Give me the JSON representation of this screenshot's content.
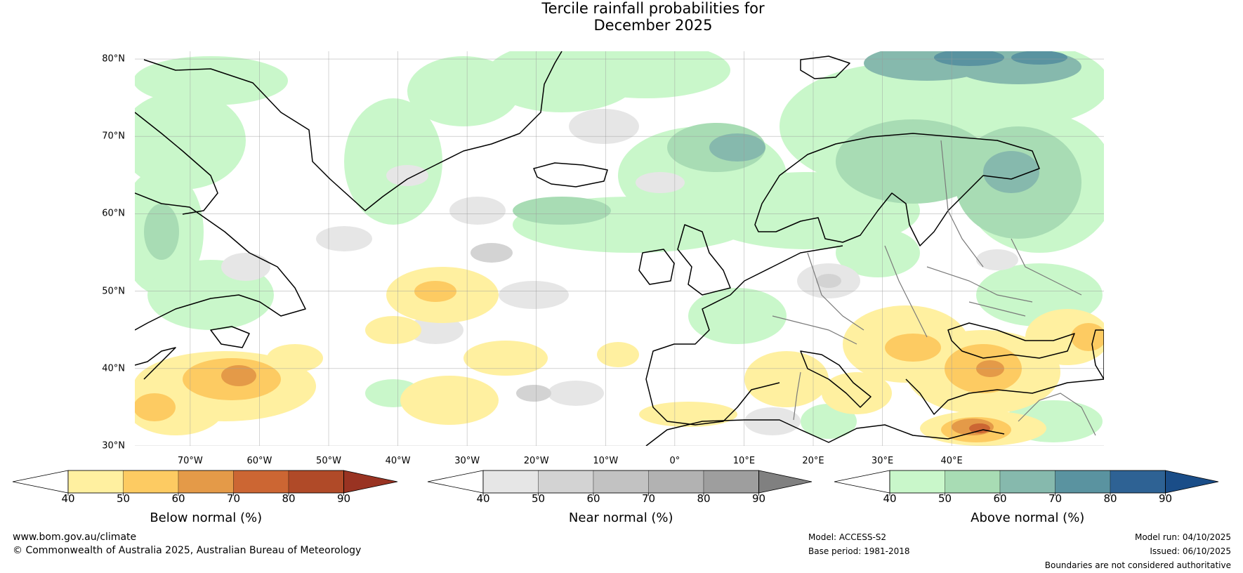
{
  "title": {
    "line1": "Tercile rainfall probabilities for",
    "line2": "December 2025"
  },
  "map": {
    "lat_labels": [
      "80°N",
      "70°N",
      "60°N",
      "50°N",
      "40°N",
      "30°N"
    ],
    "lon_labels": [
      "70°W",
      "60°W",
      "50°W",
      "40°W",
      "30°W",
      "20°W",
      "10°W",
      "0°",
      "10°E",
      "20°E",
      "30°E",
      "40°E"
    ],
    "colors": {
      "below": [
        "#fff0a0",
        "#fdcb62",
        "#e49a48",
        "#cc6633",
        "#b04a28",
        "#993322"
      ],
      "near": [
        "#e6e6e6",
        "#d3d3d3",
        "#c2c2c2",
        "#b2b2b2",
        "#9e9e9e",
        "#808080"
      ],
      "above": [
        "#c9f7ca",
        "#a8dcb4",
        "#86b9ad",
        "#5a93a0",
        "#2e6294",
        "#1a4d88"
      ]
    }
  },
  "colorbars": [
    {
      "name": "below",
      "label": "Below normal (%)",
      "ticks": [
        "40",
        "50",
        "60",
        "70",
        "80",
        "90"
      ]
    },
    {
      "name": "near",
      "label": "Near normal (%)",
      "ticks": [
        "40",
        "50",
        "60",
        "70",
        "80",
        "90"
      ]
    },
    {
      "name": "above",
      "label": "Above normal (%)",
      "ticks": [
        "40",
        "50",
        "60",
        "70",
        "80",
        "90"
      ]
    }
  ],
  "footer": {
    "website": "www.bom.gov.au/climate",
    "copyright": "© Commonwealth of Australia 2025, Australian Bureau of Meteorology",
    "model": "Model: ACCESS-S2",
    "base_period": "Base period: 1981-2018",
    "model_run": "Model run: 04/10/2025",
    "issued": "Issued: 06/10/2025",
    "disclaimer": "Boundaries are not considered authoritative"
  }
}
